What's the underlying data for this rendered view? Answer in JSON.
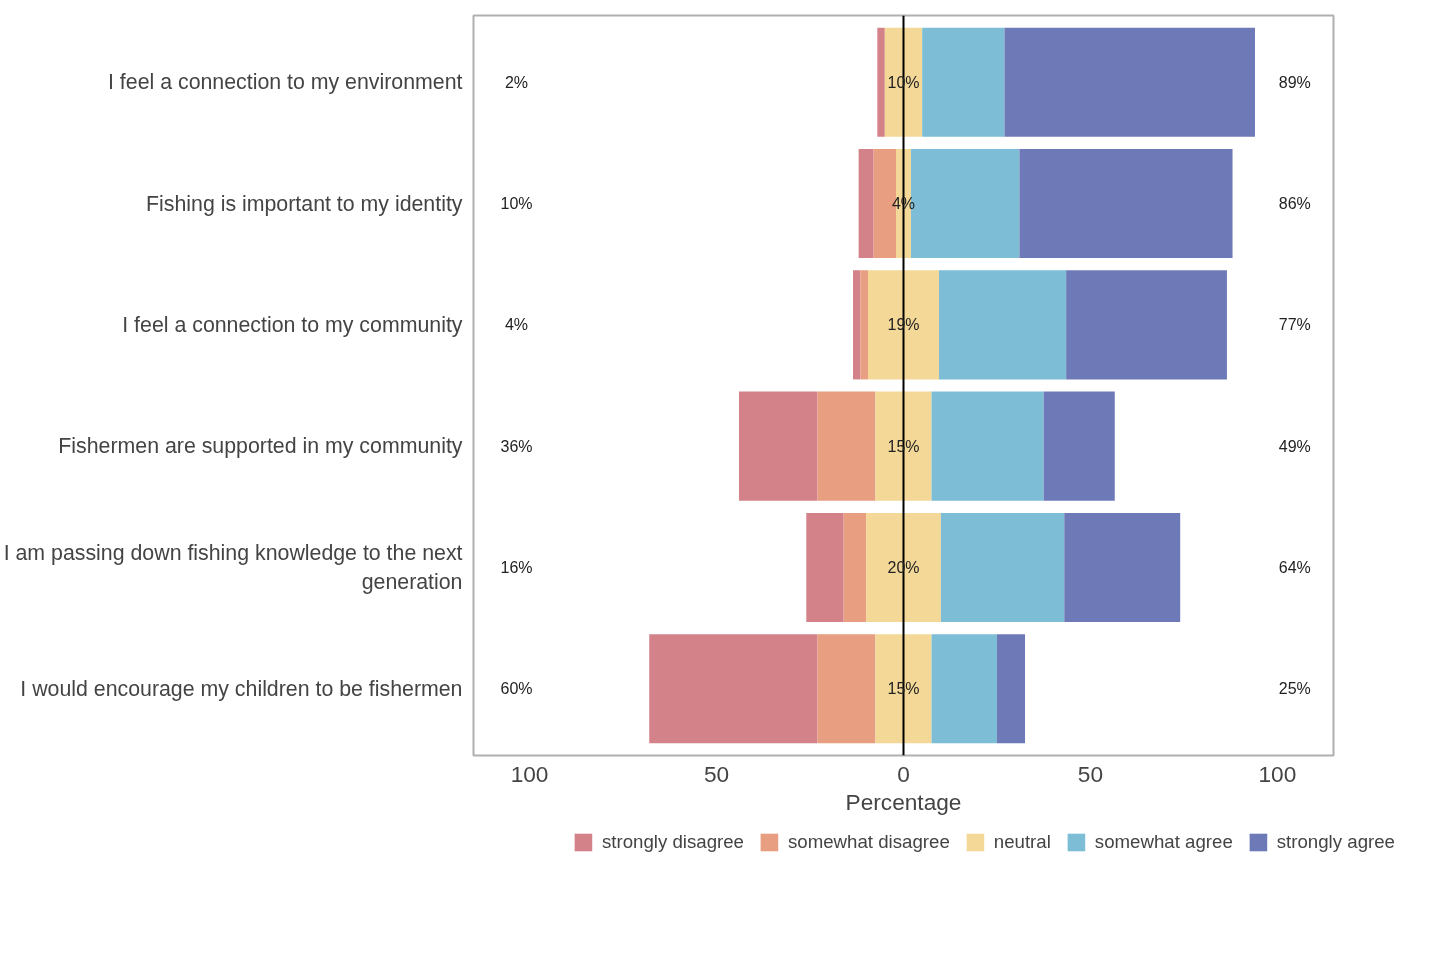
{
  "chart_data": {
    "type": "bar",
    "orientation": "horizontal",
    "xlabel": "Percentage",
    "categories": [
      "I feel a connection to my environment",
      "Fishing is important to my identity",
      "I feel a connection to my community",
      "Fishermen are supported in my community",
      "I am passing down fishing knowledge to the next generation",
      "I would encourage my children to be fishermen"
    ],
    "series": [
      {
        "name": "strongly disagree",
        "color": "#d4828a",
        "base": [
          -7,
          -12,
          -13.5,
          -44,
          -26,
          -68
        ],
        "values": [
          2,
          4,
          2,
          21,
          10,
          45
        ]
      },
      {
        "name": "somewhat disagree",
        "color": "#e89e80",
        "base": [
          null,
          -8,
          -11.5,
          -23,
          -16,
          -23
        ],
        "values": [
          null,
          6,
          2,
          15.5,
          6,
          15.5
        ]
      },
      {
        "name": "neutral",
        "color": "#f3d898",
        "base": [
          -5,
          -2,
          -9.5,
          -7.5,
          -10,
          -7.5
        ],
        "values": [
          10,
          4,
          19,
          15,
          20,
          15
        ],
        "value_labels": [
          "10%",
          "4%",
          "19%",
          "15%",
          "20%",
          "15%"
        ]
      },
      {
        "name": "somewhat agree",
        "color": "#7dbdd6",
        "base": [
          5,
          2,
          9.5,
          7.5,
          10,
          7.5
        ],
        "values": [
          22,
          29,
          34,
          30,
          33,
          17.5
        ]
      },
      {
        "name": "strongly agree",
        "color": "#6e7ab8",
        "base": [
          27,
          31,
          43.5,
          37.5,
          43,
          25
        ],
        "values": [
          67,
          57,
          43,
          19,
          31,
          7.5
        ]
      }
    ],
    "xlim": [
      -115,
      115
    ],
    "xticks": [
      {
        "value": -100,
        "label": "100"
      },
      {
        "value": -50,
        "label": "50"
      },
      0,
      {
        "value": 50,
        "label": "50"
      },
      {
        "value": 100,
        "label": "100"
      }
    ],
    "ref_lines": [
      {
        "axis": "x",
        "value": 0,
        "color": "#000000"
      }
    ],
    "grid": false,
    "legend": "bottom",
    "annotations": [
      "2%",
      "89%",
      "10%",
      "86%",
      "4%",
      "77%",
      "36%",
      "49%",
      "16%",
      "64%",
      "60%",
      "25%"
    ]
  }
}
